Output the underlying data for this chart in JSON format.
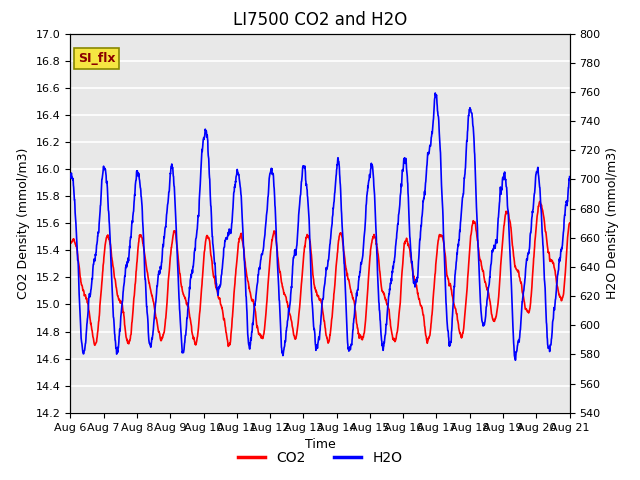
{
  "title": "LI7500 CO2 and H2O",
  "xlabel": "Time",
  "ylabel_left": "CO2 Density (mmol/m3)",
  "ylabel_right": "H2O Density (mmol/m3)",
  "ylim_left": [
    14.2,
    17.0
  ],
  "ylim_right": [
    540,
    800
  ],
  "xlim": [
    0,
    15
  ],
  "xtick_labels": [
    "Aug 6",
    "Aug 7",
    "Aug 8",
    "Aug 9",
    "Aug 10",
    "Aug 11",
    "Aug 12",
    "Aug 13",
    "Aug 14",
    "Aug 15",
    "Aug 16",
    "Aug 17",
    "Aug 18",
    "Aug 19",
    "Aug 20",
    "Aug 21"
  ],
  "legend_labels": [
    "CO2",
    "H2O"
  ],
  "legend_colors": [
    "red",
    "blue"
  ],
  "annotation_text": "SI_flx",
  "annotation_facecolor": "#f5e642",
  "annotation_edgecolor": "#888800",
  "plot_bg_color": "#e8e8e8",
  "grid_color": "white",
  "line_width": 1.2,
  "co2_color": "red",
  "h2o_color": "blue",
  "title_fontsize": 12,
  "axis_label_fontsize": 9,
  "tick_fontsize": 8,
  "seed": 42
}
